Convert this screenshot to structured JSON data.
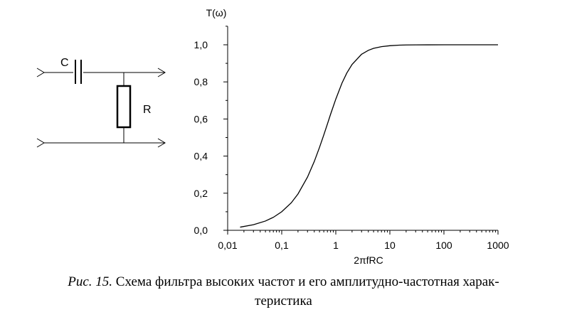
{
  "circuit": {
    "capacitor_label": "C",
    "resistor_label": "R"
  },
  "chart_data": {
    "type": "line",
    "title": "",
    "xlabel": "2πfRC",
    "ylabel": "T(ω)",
    "x_scale": "log",
    "xlim": [
      0.01,
      1000
    ],
    "ylim": [
      0,
      1
    ],
    "x_ticks": [
      0.01,
      0.1,
      1,
      10,
      100,
      1000
    ],
    "x_tick_labels": [
      "0,01",
      "0,1",
      "1",
      "10",
      "100",
      "1000"
    ],
    "y_ticks": [
      0,
      0.2,
      0.4,
      0.6,
      0.8,
      1.0
    ],
    "y_tick_labels": [
      "0,0",
      "0,2",
      "0,4",
      "0,6",
      "0,8",
      "1,0"
    ],
    "grid": false,
    "series": [
      {
        "x": [
          0.017,
          0.03,
          0.05,
          0.07,
          0.1,
          0.15,
          0.2,
          0.3,
          0.4,
          0.5,
          0.6,
          0.7,
          0.8,
          1.0,
          1.3,
          1.6,
          2,
          3,
          4,
          5,
          7,
          10,
          15,
          20,
          30,
          50,
          100,
          300,
          1000
        ],
        "y": [
          0.017,
          0.03,
          0.05,
          0.07,
          0.1,
          0.148,
          0.196,
          0.287,
          0.371,
          0.447,
          0.514,
          0.573,
          0.625,
          0.707,
          0.793,
          0.848,
          0.894,
          0.949,
          0.97,
          0.981,
          0.99,
          0.995,
          0.998,
          0.999,
          0.9994,
          0.9998,
          1.0,
          1.0,
          1.0
        ]
      }
    ]
  },
  "caption": {
    "figure": "Рис. 15.",
    "text": "Схема фильтра высоких частот и его амплитудно-частотная харак-",
    "text_cont": "теристика"
  }
}
